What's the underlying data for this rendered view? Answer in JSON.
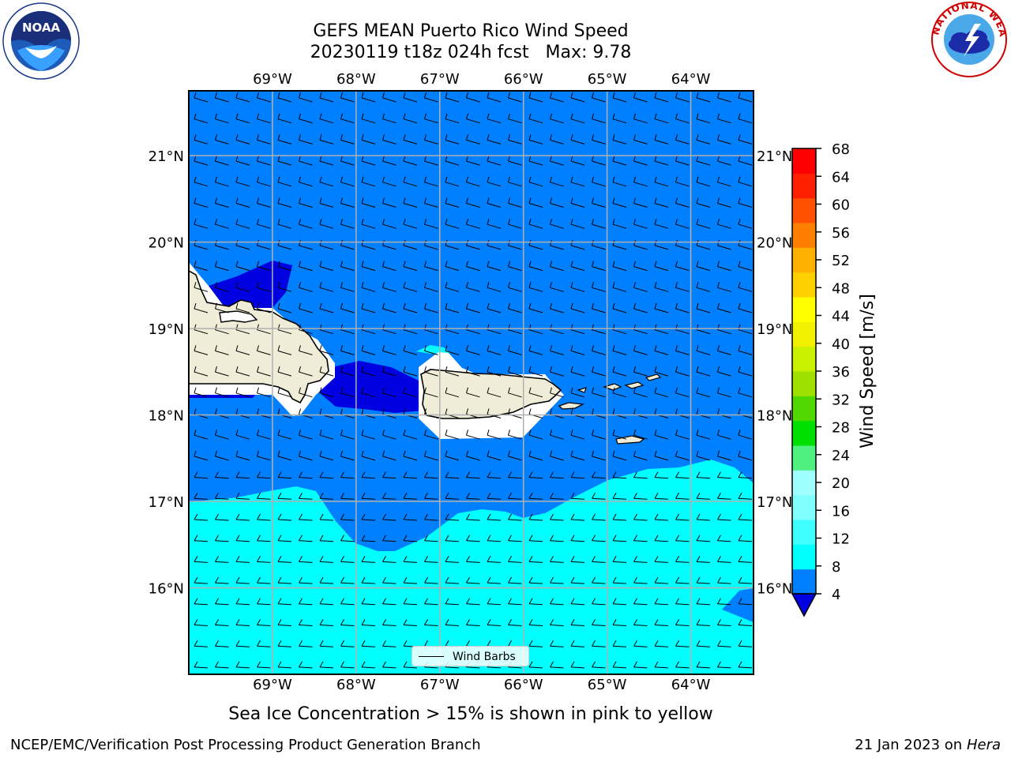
{
  "title": {
    "line1": "GEFS MEAN Puerto Rico Wind Speed",
    "line2": "20230119 t18z 024h fcst   Max: 9.78"
  },
  "subtitle": "Sea Ice Concentration > 15% is shown in pink to yellow",
  "legend": {
    "label": "Wind Barbs"
  },
  "footer": {
    "left": "NCEP/EMC/Verification Post Processing Product Generation Branch",
    "right_date": "21 Jan 2023 on",
    "right_host": "Hera"
  },
  "axes": {
    "lon_labels": [
      "69°W",
      "68°W",
      "67°W",
      "66°W",
      "65°W",
      "64°W"
    ],
    "lat_labels": [
      "21°N",
      "20°N",
      "19°N",
      "18°N",
      "17°N",
      "16°N"
    ],
    "lon_range": [
      -70.0,
      -63.25
    ],
    "lat_range": [
      15.0,
      21.75
    ]
  },
  "colorbar": {
    "label": "Wind Speed [m/s]",
    "ticks": [
      "68",
      "64",
      "60",
      "56",
      "52",
      "48",
      "44",
      "40",
      "36",
      "32",
      "28",
      "24",
      "20",
      "16",
      "12",
      "8",
      "4"
    ],
    "colors": [
      "#0000e0",
      "#0080ff",
      "#00ffff",
      "#40ffff",
      "#80ffff",
      "#a0ffff",
      "#50f080",
      "#00e000",
      "#50d800",
      "#a0e000",
      "#c8f000",
      "#f0f000",
      "#ffff00",
      "#ffd000",
      "#ffb000",
      "#ff8000",
      "#ff5000",
      "#ff2000",
      "#ff0000"
    ],
    "extend": "min"
  },
  "logos": {
    "noaa_text": "NOAA",
    "nws_text": "NATIONAL WEATHER SERVICE"
  },
  "colors": {
    "land": "#efedd8",
    "ocean_light": "#00ffff",
    "ocean_mid": "#0080ff",
    "ocean_dark": "#0000e0",
    "grid": "#b0b0b0"
  }
}
